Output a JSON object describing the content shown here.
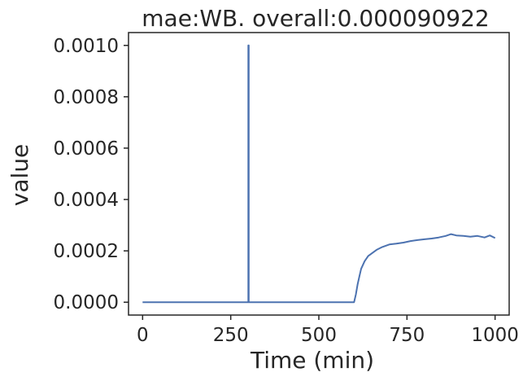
{
  "chart_data": {
    "type": "line",
    "title": "mae:WB. overall:0.000090922",
    "xlabel": "Time (min)",
    "ylabel": "value",
    "xlim": [
      -40,
      1040
    ],
    "ylim": [
      -5e-05,
      0.00105
    ],
    "xticks": [
      0,
      250,
      500,
      750,
      1000
    ],
    "xtick_labels": [
      "0",
      "250",
      "500",
      "750",
      "1000"
    ],
    "yticks": [
      0.0,
      0.0002,
      0.0004,
      0.0006,
      0.0008,
      0.001
    ],
    "ytick_labels": [
      "0.0000",
      "0.0002",
      "0.0004",
      "0.0006",
      "0.0008",
      "0.0010"
    ],
    "grid": false,
    "legend": "none",
    "series": [
      {
        "color": "#4c72b0",
        "x": [
          0,
          300,
          300,
          301,
          301,
          600,
          605,
          610,
          615,
          620,
          630,
          640,
          650,
          665,
          680,
          700,
          720,
          740,
          760,
          780,
          800,
          820,
          840,
          860,
          875,
          890,
          910,
          930,
          950,
          970,
          985,
          1000
        ],
        "y": [
          0.0,
          0.0,
          0.001,
          0.001,
          0.0,
          0.0,
          3e-05,
          7e-05,
          0.0001,
          0.00013,
          0.00016,
          0.00018,
          0.00019,
          0.000205,
          0.000215,
          0.000225,
          0.000228,
          0.000232,
          0.000238,
          0.000242,
          0.000245,
          0.000248,
          0.000252,
          0.000258,
          0.000265,
          0.00026,
          0.000258,
          0.000255,
          0.000258,
          0.000252,
          0.00026,
          0.00025
        ]
      }
    ]
  }
}
